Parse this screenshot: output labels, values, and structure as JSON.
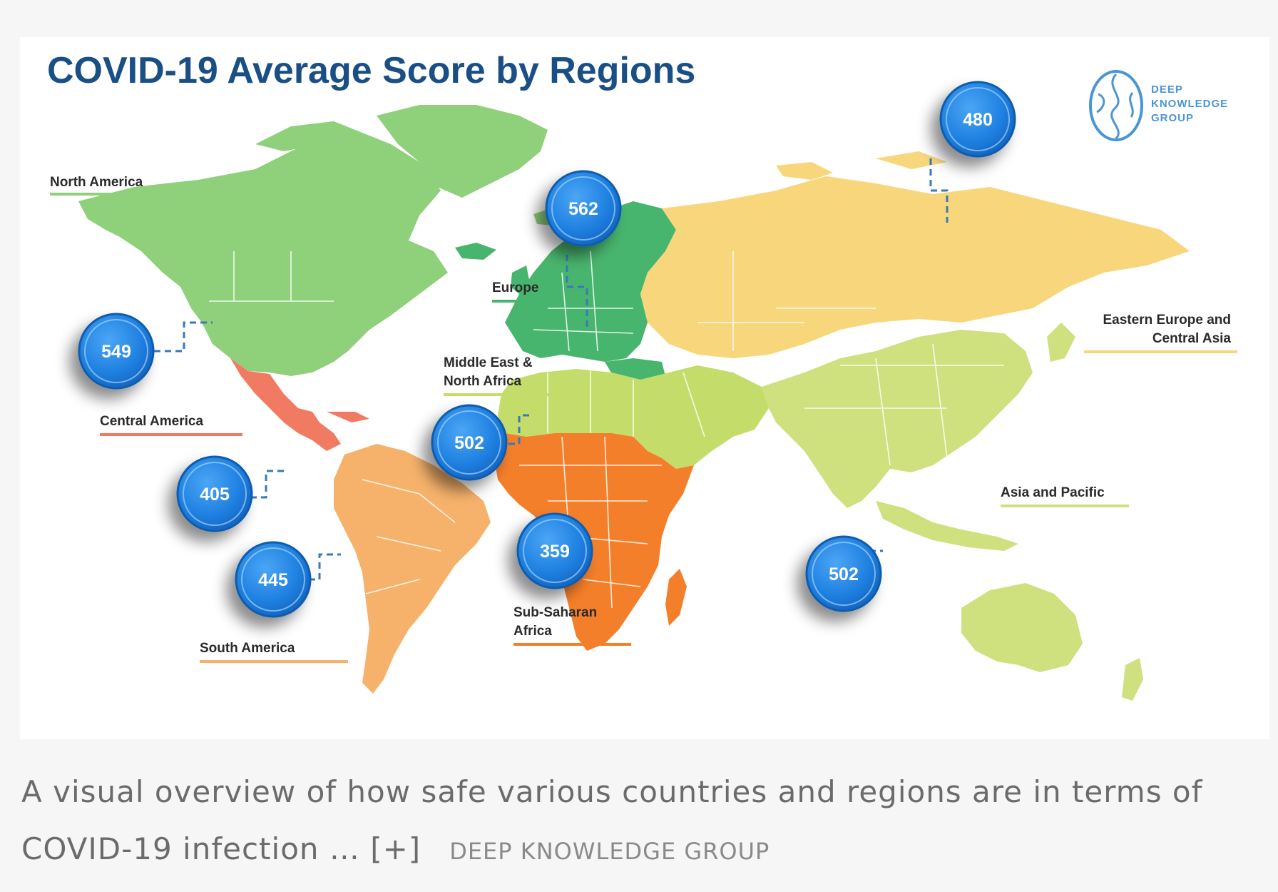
{
  "map": {
    "title": "COVID-19 Average Score by Regions",
    "logo": {
      "line1": "DEEP",
      "line2": "KNOWLEDGE",
      "line3": "GROUP"
    },
    "regions": [
      {
        "id": "north-america",
        "label": "North America",
        "score": "549",
        "color": "#8fd07a"
      },
      {
        "id": "central-america",
        "label": "Central America",
        "score": "405",
        "color": "#f07a62"
      },
      {
        "id": "south-america",
        "label": "South America",
        "score": "445",
        "color": "#f6b26b"
      },
      {
        "id": "europe",
        "label": "Europe",
        "score": "562",
        "color": "#48b56e"
      },
      {
        "id": "middle-east",
        "label_line1": "Middle East &",
        "label_line2": "North Africa",
        "score": "502",
        "color": "#c4dd6a"
      },
      {
        "id": "sub-saharan",
        "label_line1": "Sub-Saharan",
        "label_line2": "Africa",
        "score": "359",
        "color": "#f47f2a"
      },
      {
        "id": "eastern-europe",
        "label_line1": "Eastern Europe and",
        "label_line2": "Central Asia",
        "score": "480",
        "color": "#f8d67c"
      },
      {
        "id": "asia-pacific",
        "label": "Asia and Pacific",
        "score": "502",
        "color": "#cfe07f"
      }
    ]
  },
  "caption": {
    "text": "A visual overview of how safe various countries and regions are in terms of COVID-19 infection … ",
    "more": "[+]",
    "source": "DEEP KNOWLEDGE GROUP"
  }
}
